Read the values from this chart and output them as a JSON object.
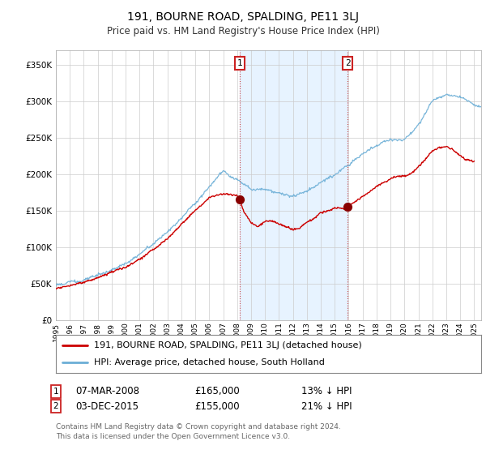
{
  "title": "191, BOURNE ROAD, SPALDING, PE11 3LJ",
  "subtitle": "Price paid vs. HM Land Registry's House Price Index (HPI)",
  "xlim_start": 1995.0,
  "xlim_end": 2025.5,
  "ylim_min": 0,
  "ylim_max": 370000,
  "sale1_date": 2008.18,
  "sale1_price": 165000,
  "sale2_date": 2015.92,
  "sale2_price": 155000,
  "sale1_text": "07-MAR-2008",
  "sale1_price_text": "£165,000",
  "sale1_hpi_text": "13% ↓ HPI",
  "sale2_text": "03-DEC-2015",
  "sale2_price_text": "£155,000",
  "sale2_hpi_text": "21% ↓ HPI",
  "legend1": "191, BOURNE ROAD, SPALDING, PE11 3LJ (detached house)",
  "legend2": "HPI: Average price, detached house, South Holland",
  "footer": "Contains HM Land Registry data © Crown copyright and database right 2024.\nThis data is licensed under the Open Government Licence v3.0.",
  "hpi_color": "#6baed6",
  "price_color": "#cc0000",
  "shade_color": "#ddeeff",
  "background_color": "#ffffff",
  "grid_color": "#cccccc",
  "yticks": [
    0,
    50000,
    100000,
    150000,
    200000,
    250000,
    300000,
    350000
  ],
  "ytick_labels": [
    "£0",
    "£50K",
    "£100K",
    "£150K",
    "£200K",
    "£250K",
    "£300K",
    "£350K"
  ]
}
